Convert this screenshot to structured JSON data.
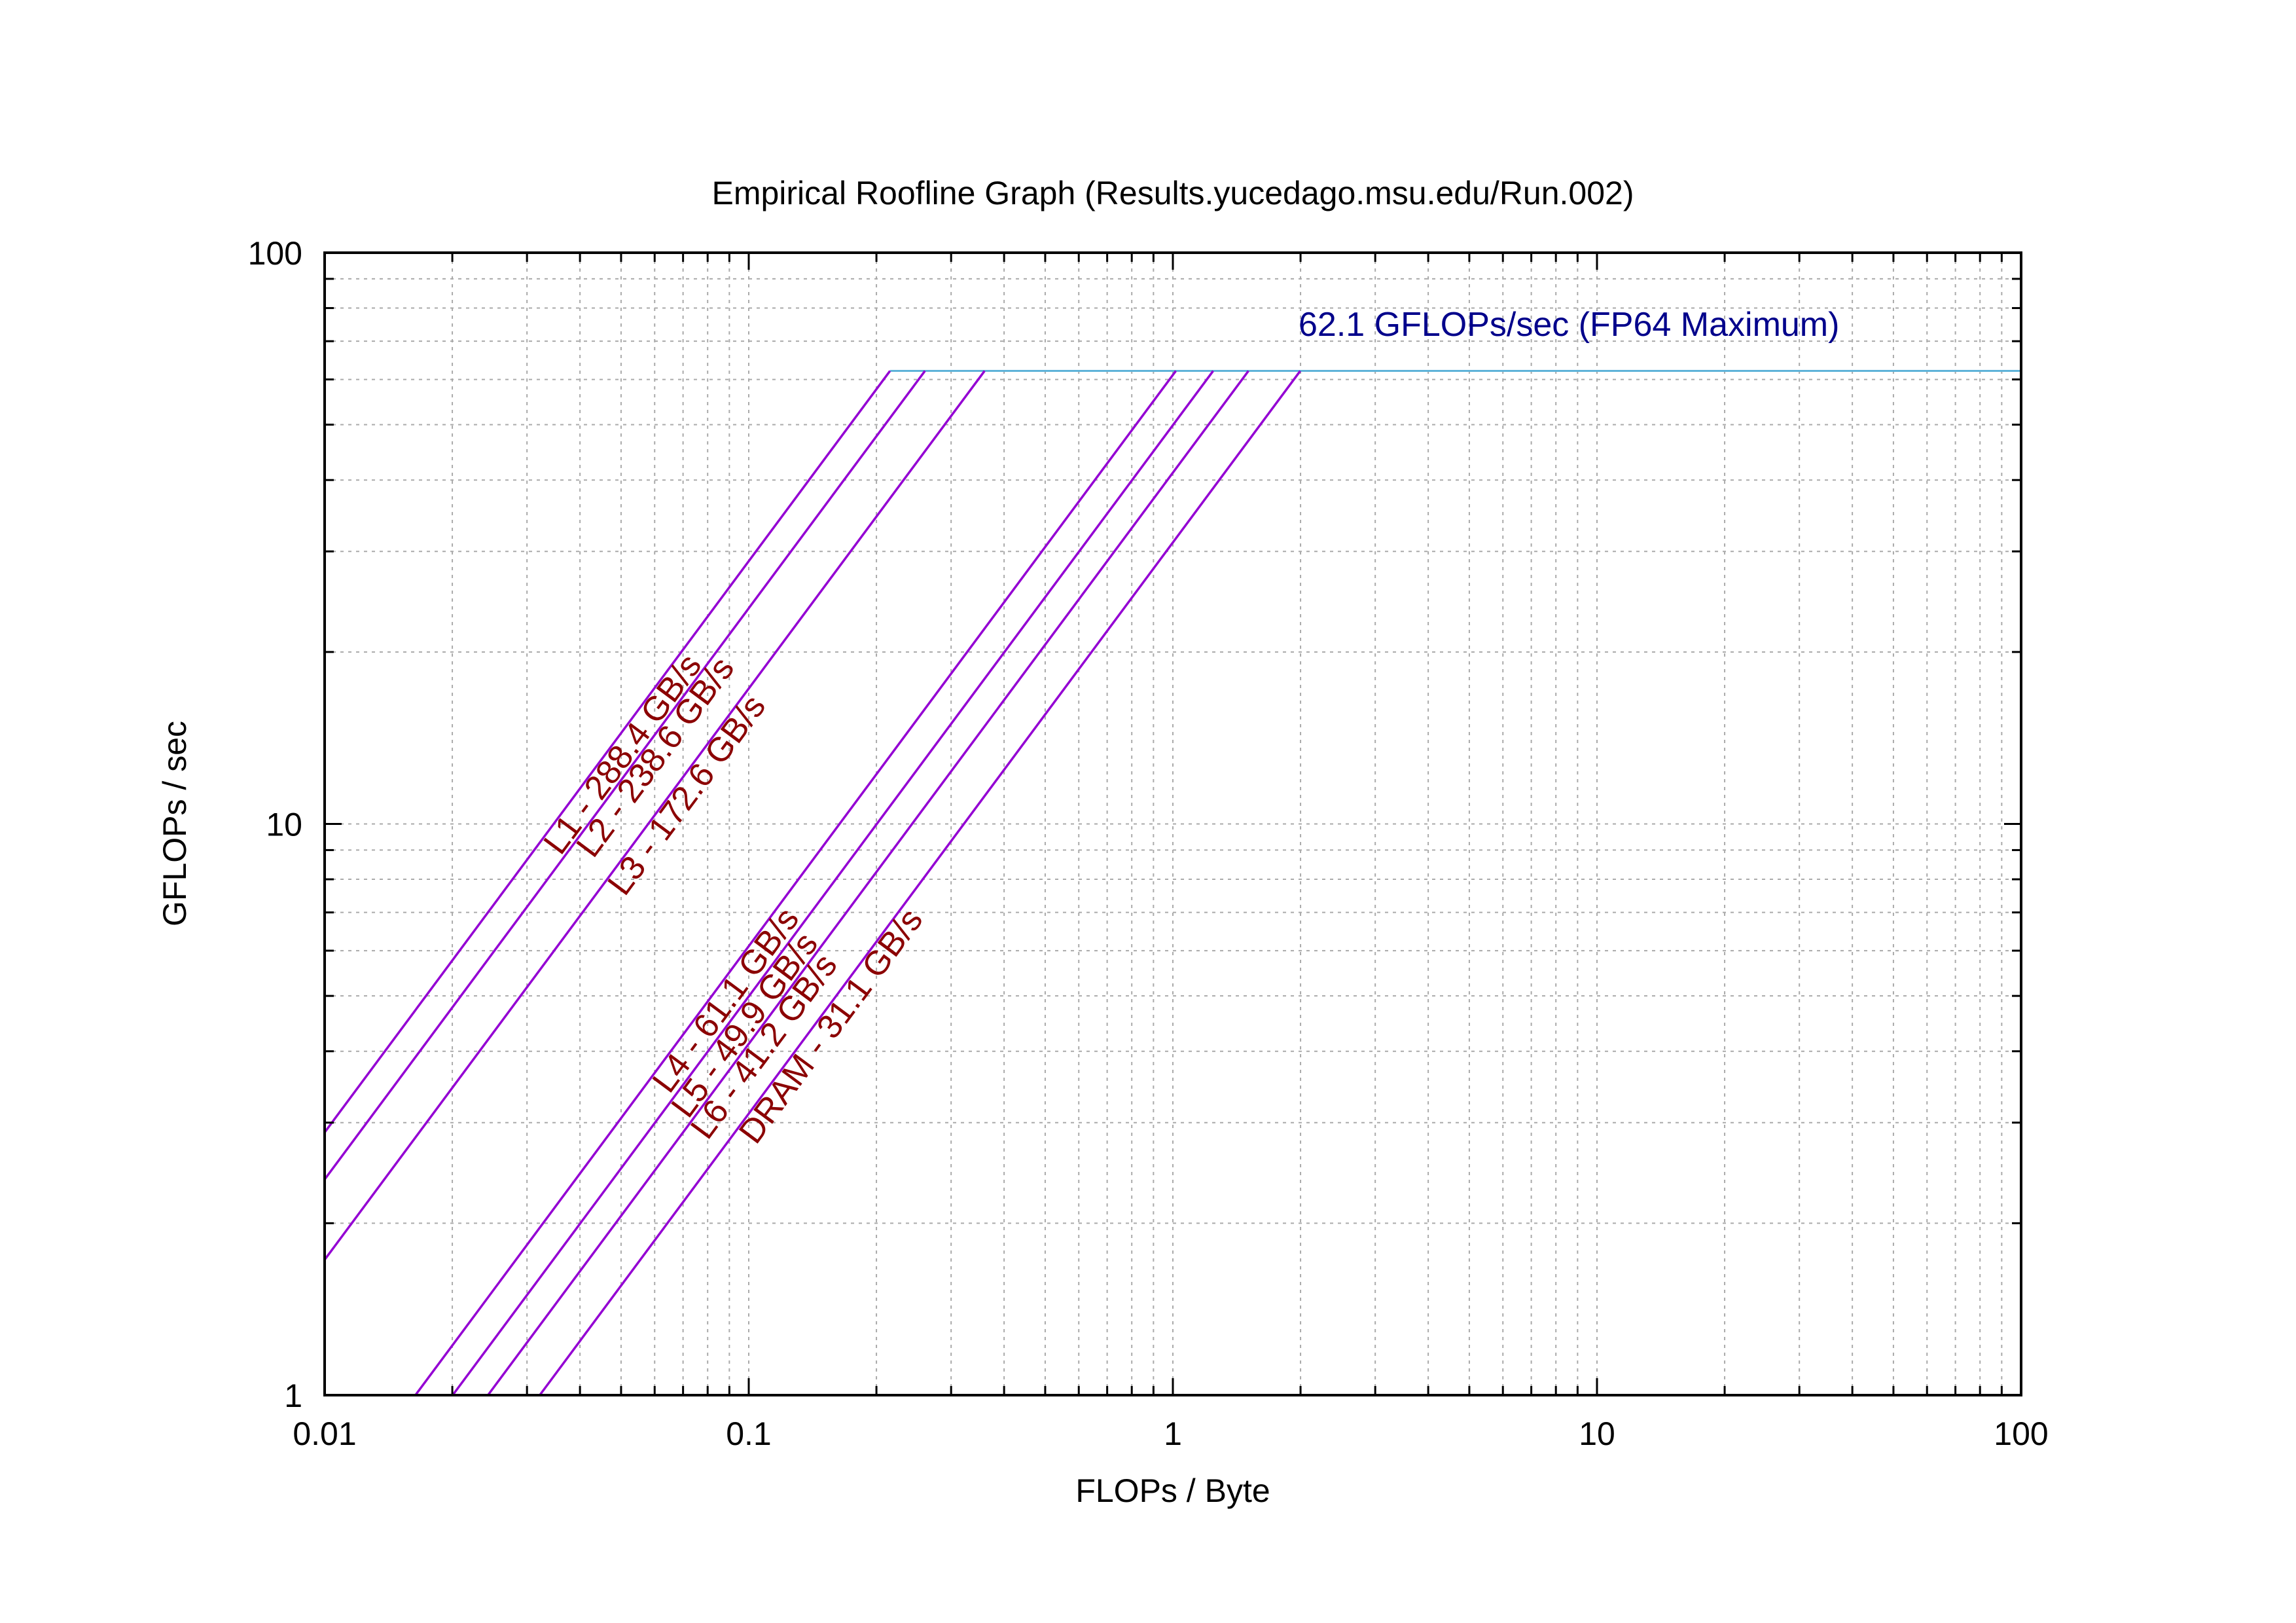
{
  "chart_data": {
    "type": "line",
    "title": "Empirical Roofline Graph (Results.yucedago.msu.edu/Run.002)",
    "xlabel": "FLOPs / Byte",
    "ylabel": "GFLOPs / sec",
    "x_scale": "log",
    "y_scale": "log",
    "xlim": [
      0.01,
      100
    ],
    "ylim": [
      1,
      100
    ],
    "x_ticks": [
      0.01,
      0.1,
      1,
      10,
      100
    ],
    "x_tick_labels": [
      "0.01",
      "0.1",
      "1",
      "10",
      "100"
    ],
    "y_ticks": [
      1,
      10,
      100
    ],
    "y_tick_labels": [
      "1",
      "10",
      "100"
    ],
    "grid": true,
    "peak": {
      "value": 62.1,
      "label": "62.1 GFLOPs/sec (FP64 Maximum)",
      "x_range": [
        0.2153,
        100
      ],
      "color": "#5fb3d9",
      "label_color": "#00008b"
    },
    "series": [
      {
        "name": "L1 - 288.4 GB/s",
        "bandwidth": 288.4,
        "x": [
          0.01,
          0.2153
        ],
        "y": [
          2.884,
          62.1
        ]
      },
      {
        "name": "L2 - 238.6 GB/s",
        "bandwidth": 238.6,
        "x": [
          0.01,
          0.2603
        ],
        "y": [
          2.386,
          62.1
        ]
      },
      {
        "name": "L3 - 172.6 GB/s",
        "bandwidth": 172.6,
        "x": [
          0.01,
          0.3598
        ],
        "y": [
          1.726,
          62.1
        ]
      },
      {
        "name": "L4 - 61.1 GB/s",
        "bandwidth": 61.1,
        "x": [
          0.01637,
          1.0164
        ],
        "y": [
          1,
          62.1
        ]
      },
      {
        "name": "L5 - 49.9 GB/s",
        "bandwidth": 49.9,
        "x": [
          0.02004,
          1.2445
        ],
        "y": [
          1,
          62.1
        ]
      },
      {
        "name": "L6 - 41.2 GB/s",
        "bandwidth": 41.2,
        "x": [
          0.02427,
          1.5073
        ],
        "y": [
          1,
          62.1
        ]
      },
      {
        "name": "DRAM - 31.1 GB/s",
        "bandwidth": 31.1,
        "x": [
          0.03215,
          1.9968
        ],
        "y": [
          1,
          62.1
        ]
      }
    ],
    "line_color": "#9400d3",
    "series_label_color": "#8b0000",
    "legend": "none"
  }
}
